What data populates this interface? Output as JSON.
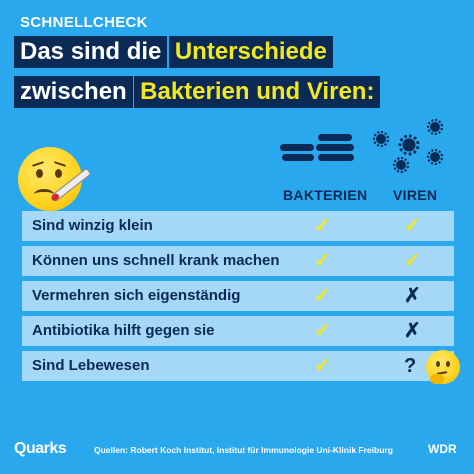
{
  "kicker": "SCHNELLCHECK",
  "headline": {
    "part1": "Das sind die",
    "part2_highlight": "Unterschiede",
    "part3": "zwischen",
    "part4_highlight": "Bakterien und Viren:"
  },
  "columns": {
    "bacteria": "BAKTERIEN",
    "viruses": "VIREN"
  },
  "rows": [
    {
      "label": "Sind winzig klein",
      "bacteria": "✓",
      "viruses": "✓"
    },
    {
      "label": "Können uns schnell krank machen",
      "bacteria": "✓",
      "viruses": "✓"
    },
    {
      "label": "Vermehren sich eigenständig",
      "bacteria": "✓",
      "viruses": "✗"
    },
    {
      "label": "Antibiotika hilft gegen sie",
      "bacteria": "✓",
      "viruses": "✗"
    },
    {
      "label": "Sind Lebewesen",
      "bacteria": "✓",
      "viruses": "?"
    }
  ],
  "icons": {
    "sick_face": "sick-face-thermometer",
    "bacteria": "bacteria-rods",
    "virus": "virus-particles",
    "thinking_face": "thinking-face"
  },
  "footer": {
    "brand": "Quarks",
    "sources": "Quellen: Robert Koch Institut, Institut für Immunologie Uni-Klinik Freiburg",
    "broadcaster": "WDR"
  },
  "colors": {
    "background": "#29a8ee",
    "navy": "#0b2a55",
    "highlight_yellow": "#f3e81c",
    "row_fill": "#a5d7f6"
  }
}
